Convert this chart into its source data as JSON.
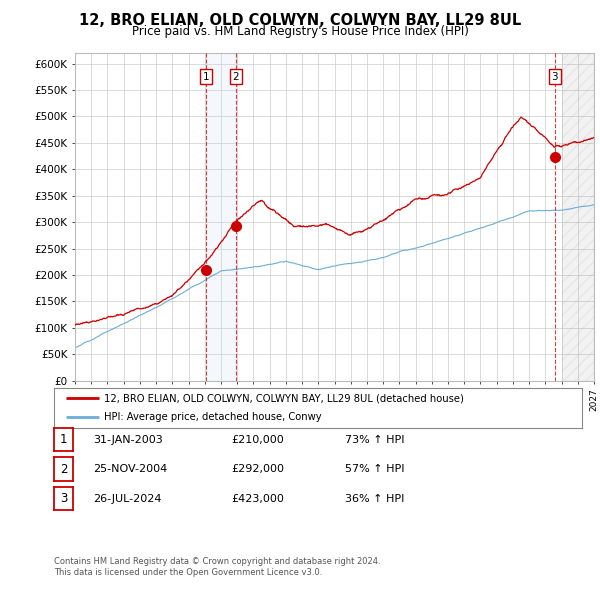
{
  "title": "12, BRO ELIAN, OLD COLWYN, COLWYN BAY, LL29 8UL",
  "subtitle": "Price paid vs. HM Land Registry's House Price Index (HPI)",
  "ylim": [
    0,
    620000
  ],
  "yticks": [
    0,
    50000,
    100000,
    150000,
    200000,
    250000,
    300000,
    350000,
    400000,
    450000,
    500000,
    550000,
    600000
  ],
  "ytick_labels": [
    "£0",
    "£50K",
    "£100K",
    "£150K",
    "£200K",
    "£250K",
    "£300K",
    "£350K",
    "£400K",
    "£450K",
    "£500K",
    "£550K",
    "£600K"
  ],
  "hpi_color": "#6baed6",
  "price_color": "#cc0000",
  "sale1_x": 2003.08,
  "sale1_y": 210000,
  "sale2_x": 2004.92,
  "sale2_y": 292000,
  "sale3_x": 2024.57,
  "sale3_y": 423000,
  "legend_line1": "12, BRO ELIAN, OLD COLWYN, COLWYN BAY, LL29 8UL (detached house)",
  "legend_line2": "HPI: Average price, detached house, Conwy",
  "table_data": [
    {
      "num": "1",
      "date": "31-JAN-2003",
      "price": "£210,000",
      "change": "73% ↑ HPI"
    },
    {
      "num": "2",
      "date": "25-NOV-2004",
      "price": "£292,000",
      "change": "57% ↑ HPI"
    },
    {
      "num": "3",
      "date": "26-JUL-2024",
      "price": "£423,000",
      "change": "36% ↑ HPI"
    }
  ],
  "footnote1": "Contains HM Land Registry data © Crown copyright and database right 2024.",
  "footnote2": "This data is licensed under the Open Government Licence v3.0.",
  "background_color": "#ffffff",
  "grid_color": "#cccccc",
  "xmin": 1995,
  "xmax": 2027,
  "forecast_start": 2025.0
}
